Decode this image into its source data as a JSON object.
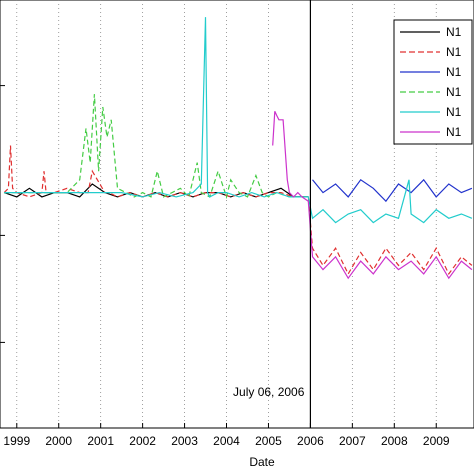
{
  "chart_data": {
    "type": "line",
    "title": "",
    "xlabel": "Date",
    "ylabel": "",
    "x_tick_labels": [
      "1999",
      "2000",
      "2001",
      "2002",
      "2003",
      "2004",
      "2005",
      "2006",
      "2007",
      "2008",
      "2009"
    ],
    "x_tick_years": [
      1999,
      2000,
      2001,
      2002,
      2003,
      2004,
      2005,
      2006,
      2007,
      2008,
      2009
    ],
    "xlim": [
      1998.6,
      2009.9
    ],
    "ylim": [
      0,
      100
    ],
    "grid": "vertical-dotted",
    "legend_position": "top-right",
    "annotation": {
      "text": "July 06, 2006",
      "x": 2006.0
    },
    "series": [
      {
        "name": "N1",
        "color": "#000000",
        "dash": "solid",
        "x": [
          1998.7,
          1999.0,
          1999.3,
          1999.6,
          1999.9,
          2000.2,
          2000.5,
          2000.8,
          2001.1,
          2001.4,
          2001.7,
          2002.0,
          2002.3,
          2002.6,
          2002.9,
          2003.2,
          2003.5,
          2003.8,
          2004.1,
          2004.4,
          2004.7,
          2005.0,
          2005.3,
          2005.6,
          2005.95
        ],
        "y": [
          55,
          54,
          56,
          54,
          55,
          55,
          54,
          57,
          55,
          54,
          55,
          54,
          55,
          54,
          55,
          54,
          55,
          55,
          54,
          55,
          54,
          55,
          56,
          54,
          54
        ]
      },
      {
        "name": "N1",
        "color": "#e03030",
        "dash": "dashed",
        "x": [
          1998.7,
          1998.8,
          1998.85,
          1998.9,
          1999.0,
          1999.3,
          1999.6,
          1999.65,
          1999.7,
          1999.9,
          2000.2,
          2000.5,
          2000.7,
          2000.8,
          2001.1,
          2001.2,
          2001.4,
          2001.7,
          2002.0,
          2002.3,
          2002.6,
          2002.9,
          2003.2,
          2003.5,
          2003.8,
          2004.1,
          2004.4,
          2004.7,
          2005.0,
          2005.3,
          2005.6,
          2005.95,
          2006.05,
          2006.3,
          2006.6,
          2006.9,
          2007.2,
          2007.5,
          2007.8,
          2008.1,
          2008.4,
          2008.7,
          2009.0,
          2009.3,
          2009.6,
          2009.85
        ],
        "y": [
          55,
          56,
          66,
          56,
          55,
          54,
          55,
          60,
          55,
          55,
          56,
          55,
          55,
          60,
          55,
          55,
          54,
          55,
          54,
          55,
          54,
          55,
          54,
          55,
          55,
          54,
          55,
          54,
          55,
          55,
          54,
          54,
          42,
          38,
          42,
          36,
          41,
          37,
          42,
          38,
          41,
          37,
          42,
          36,
          40,
          38
        ]
      },
      {
        "name": "N1",
        "color": "#2233cc",
        "dash": "solid",
        "x": [
          2006.05,
          2006.3,
          2006.6,
          2006.9,
          2007.2,
          2007.5,
          2007.8,
          2008.1,
          2008.4,
          2008.7,
          2009.0,
          2009.3,
          2009.6,
          2009.85
        ],
        "y": [
          58,
          55,
          57,
          54,
          58,
          56,
          53,
          57,
          55,
          58,
          54,
          57,
          55,
          56
        ]
      },
      {
        "name": "N1",
        "color": "#44cc44",
        "dash": "dashed",
        "x": [
          1998.7,
          2000.2,
          2000.5,
          2000.65,
          2000.75,
          2000.85,
          2000.95,
          2001.05,
          2001.15,
          2001.25,
          2001.4,
          2001.6,
          2001.8,
          2002.0,
          2002.2,
          2002.35,
          2002.5,
          2002.7,
          2002.9,
          2003.1,
          2003.3,
          2003.4,
          2003.6,
          2003.8,
          2004.0,
          2004.1,
          2004.3,
          2004.5,
          2004.7,
          2004.85,
          2005.0,
          2005.2,
          2005.5,
          2005.95
        ],
        "y": [
          55,
          55,
          58,
          70,
          62,
          78,
          60,
          75,
          68,
          72,
          56,
          55,
          54,
          55,
          54,
          60,
          54,
          55,
          56,
          54,
          62,
          55,
          54,
          60,
          54,
          58,
          55,
          54,
          59,
          55,
          54,
          55,
          54,
          54
        ]
      },
      {
        "name": "N1",
        "color": "#22cccc",
        "dash": "solid",
        "x": [
          1998.7,
          2001.5,
          2002.0,
          2002.4,
          2002.8,
          2003.2,
          2003.4,
          2003.5,
          2003.55,
          2003.6,
          2003.8,
          2004.0,
          2004.3,
          2004.6,
          2004.9,
          2005.2,
          2005.5,
          2005.95,
          2006.05,
          2006.3,
          2006.6,
          2006.9,
          2007.2,
          2007.5,
          2007.8,
          2008.1,
          2008.35,
          2008.4,
          2008.7,
          2009.0,
          2009.3,
          2009.6,
          2009.85
        ],
        "y": [
          55,
          55,
          54,
          55,
          54,
          55,
          57,
          96,
          55,
          54,
          55,
          55,
          54,
          55,
          54,
          55,
          54,
          54,
          49,
          51,
          48,
          50,
          51,
          48,
          50,
          49,
          58,
          50,
          48,
          51,
          49,
          50,
          49
        ]
      },
      {
        "name": "N1",
        "color": "#cc33cc",
        "dash": "solid",
        "x": [
          2005.1,
          2005.15,
          2005.2,
          2005.25,
          2005.35,
          2005.45,
          2005.5,
          2005.6,
          2005.7,
          2005.8,
          2005.95,
          2006.05,
          2006.3,
          2006.6,
          2006.9,
          2007.2,
          2007.5,
          2007.8,
          2008.1,
          2008.4,
          2008.7,
          2009.0,
          2009.3,
          2009.6,
          2009.85
        ],
        "y": [
          66,
          74,
          73,
          72,
          72,
          58,
          55,
          54,
          55,
          54,
          53,
          40,
          37,
          40,
          35,
          39,
          36,
          40,
          37,
          39,
          36,
          40,
          35,
          39,
          37
        ]
      }
    ]
  }
}
